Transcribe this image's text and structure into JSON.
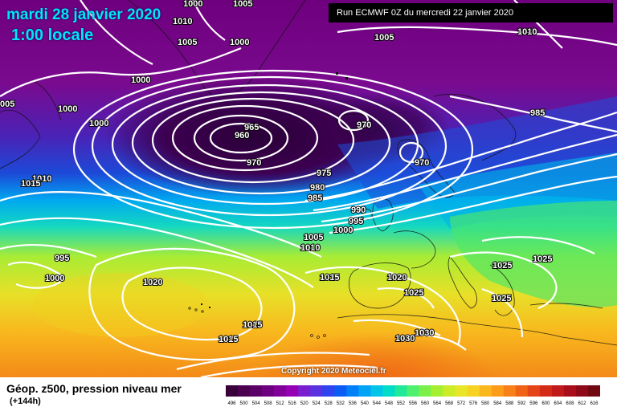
{
  "header": {
    "date": "mardi 28 janvier 2020",
    "time": "1:00 locale",
    "run": "Run ECMWF 0Z du mercredi 22 janvier 2020"
  },
  "copyright": "Copyright 2020 Meteociel.fr",
  "legend": {
    "title": "Géop. z500, pression niveau mer",
    "subtitle": "(+144h)",
    "scale_values": [
      "496",
      "500",
      "504",
      "508",
      "512",
      "516",
      "520",
      "524",
      "528",
      "532",
      "536",
      "540",
      "544",
      "548",
      "552",
      "556",
      "560",
      "564",
      "568",
      "572",
      "576",
      "580",
      "584",
      "588",
      "592",
      "596",
      "600",
      "604",
      "608",
      "612",
      "616"
    ],
    "scale_colors": [
      "#3a003a",
      "#4a004f",
      "#5b0066",
      "#6e0080",
      "#82009a",
      "#9500b4",
      "#7a1fd0",
      "#5a32e0",
      "#2f44ef",
      "#0a5cf5",
      "#0080f8",
      "#00a3f5",
      "#00c4e8",
      "#00dcc8",
      "#22e89a",
      "#4ff070",
      "#7cf04a",
      "#a6ef30",
      "#ccec28",
      "#e9e528",
      "#f7d223",
      "#fbb81e",
      "#fb9d1a",
      "#f78018",
      "#f06216",
      "#e44516",
      "#d42b16",
      "#c01a1a",
      "#a80f1a",
      "#8e0a18",
      "#700812"
    ]
  },
  "pressure_labels": [
    {
      "text": "1000"
    },
    {
      "text": "1005"
    },
    {
      "text": "1010"
    },
    {
      "text": "1005"
    },
    {
      "text": "1000"
    },
    {
      "text": "1000"
    },
    {
      "text": "005"
    },
    {
      "text": "1000"
    },
    {
      "text": "1000"
    },
    {
      "text": "1010"
    },
    {
      "text": "1015"
    },
    {
      "text": "965"
    },
    {
      "text": "960"
    },
    {
      "text": "970"
    },
    {
      "text": "970"
    },
    {
      "text": "970"
    },
    {
      "text": "985"
    },
    {
      "text": "975"
    },
    {
      "text": "980"
    },
    {
      "text": "985"
    },
    {
      "text": "990"
    },
    {
      "text": "995"
    },
    {
      "text": "1000"
    },
    {
      "text": "1005"
    },
    {
      "text": "1010"
    },
    {
      "text": "1005"
    },
    {
      "text": "1010"
    },
    {
      "text": "995"
    },
    {
      "text": "1000"
    },
    {
      "text": "1020"
    },
    {
      "text": "1015"
    },
    {
      "text": "1020"
    },
    {
      "text": "1025"
    },
    {
      "text": "1025"
    },
    {
      "text": "1025"
    },
    {
      "text": "1025"
    },
    {
      "text": "1015"
    },
    {
      "text": "1015"
    },
    {
      "text": "1030"
    },
    {
      "text": "1030"
    }
  ]
}
